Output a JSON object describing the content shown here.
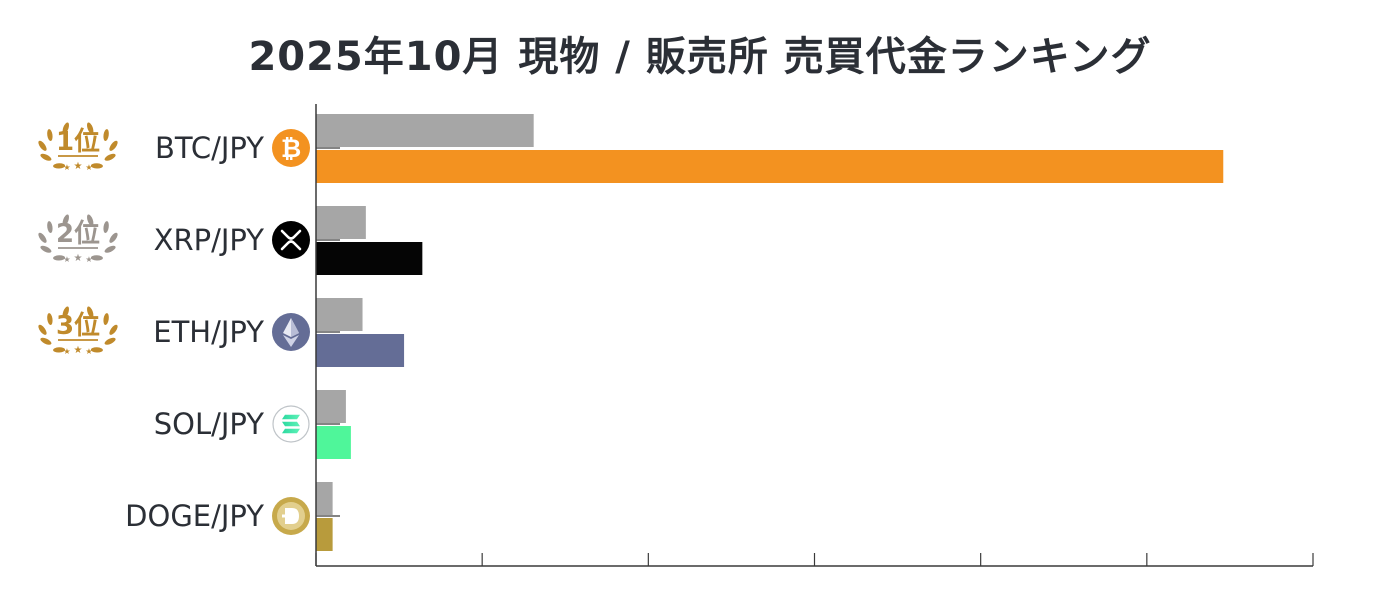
{
  "title": "2025年10月 現物 / 販売所 売買代金ランキング",
  "colors": {
    "comparison_bar": "#a6a6a6",
    "axis": "#3a3a3a",
    "gold": "#c08a2b",
    "silver": "#9c958f"
  },
  "chart_data": {
    "type": "bar",
    "orientation": "horizontal",
    "title": "2025年10月 現物 / 販売所 売買代金ランキング",
    "xlabel": "",
    "ylabel": "",
    "xlim": [
      0,
      6
    ],
    "x_ticks": [
      0,
      1,
      2,
      3,
      4,
      5,
      6
    ],
    "x_tick_labels_shown": false,
    "grid": false,
    "legend": "none",
    "categories": [
      "BTC/JPY",
      "XRP/JPY",
      "ETH/JPY",
      "SOL/JPY",
      "DOGE/JPY"
    ],
    "ranks": [
      "1位",
      "2位",
      "3位",
      "",
      ""
    ],
    "rank_styles": [
      "gold",
      "silver",
      "gold",
      "",
      ""
    ],
    "icons": [
      "bitcoin-icon",
      "xrp-icon",
      "ethereum-icon",
      "solana-icon",
      "dogecoin-icon"
    ],
    "series": [
      {
        "values": [
          1.31,
          0.3,
          0.28,
          0.18,
          0.1
        ],
        "color": "#a6a6a6"
      },
      {
        "values": [
          5.46,
          0.64,
          0.53,
          0.21,
          0.1
        ],
        "colors": [
          "#f39220",
          "#050505",
          "#646d96",
          "#4ff69a",
          "#b89b3c"
        ]
      }
    ]
  }
}
